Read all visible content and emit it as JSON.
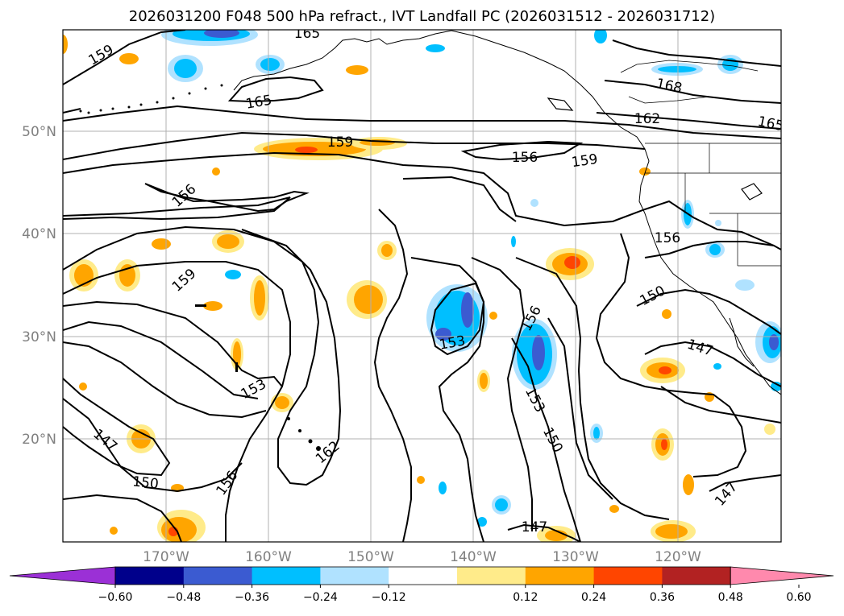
{
  "title": "2026031200 F048 500 hPa refract., IVT Landfall PC (2026031512 - 2026031712)",
  "map": {
    "lon_ticks": [
      "170°W",
      "160°W",
      "150°W",
      "140°W",
      "130°W",
      "120°W"
    ],
    "lat_ticks": [
      "50°N",
      "40°N",
      "30°N",
      "20°N"
    ],
    "contour_color": "#000000",
    "gridline_color": "#b0b0b0",
    "coastline_color": "#000000",
    "contour_labels": [
      "165",
      "159",
      "165",
      "168",
      "162",
      "165",
      "159",
      "156",
      "159",
      "156",
      "156",
      "159",
      "150",
      "147",
      "153",
      "156",
      "153",
      "150",
      "153",
      "147",
      "150",
      "156",
      "162",
      "147",
      "147"
    ]
  },
  "colorbar": {
    "labels": [
      "-0.60",
      "-0.48",
      "-0.36",
      "-0.24",
      "-0.12",
      "0.12",
      "0.24",
      "0.36",
      "0.48",
      "0.60"
    ],
    "colors": [
      "#9b30d6",
      "#00008b",
      "#3b5bd1",
      "#00bfff",
      "#b0e2ff",
      "#ffffff",
      "#ffeb8a",
      "#ffa500",
      "#ff4500",
      "#b22222",
      "#ff89ad"
    ]
  }
}
